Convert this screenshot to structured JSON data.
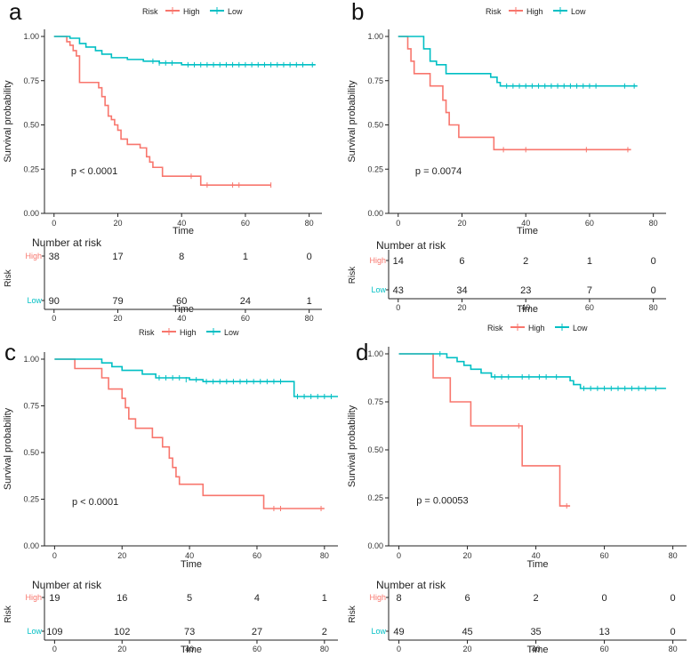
{
  "chart_data": [
    {
      "panel_label": "a",
      "type": "line",
      "subtype": "kaplan-meier",
      "legend": {
        "title": "Risk",
        "entries": [
          "High",
          "Low"
        ],
        "placement": "top"
      },
      "ylabel": "Survival probability",
      "xlabel": "Time",
      "ylim": [
        0,
        1
      ],
      "y_ticks": [
        "0.00",
        "0.25",
        "0.50",
        "0.75",
        "1.00"
      ],
      "xlim": [
        -3,
        84
      ],
      "x_ticks": [
        0,
        20,
        40,
        60,
        80
      ],
      "annotation": "p < 0.0001",
      "series": [
        {
          "name": "High",
          "color": "#f8766d",
          "steps": [
            [
              0,
              1
            ],
            [
              4,
              0.97
            ],
            [
              5,
              0.95
            ],
            [
              6,
              0.92
            ],
            [
              7,
              0.89
            ],
            [
              8,
              0.74
            ],
            [
              14,
              0.71
            ],
            [
              15,
              0.66
            ],
            [
              16,
              0.61
            ],
            [
              17,
              0.55
            ],
            [
              18,
              0.53
            ],
            [
              19,
              0.5
            ],
            [
              20,
              0.47
            ],
            [
              21,
              0.42
            ],
            [
              23,
              0.39
            ],
            [
              27,
              0.37
            ],
            [
              29,
              0.32
            ],
            [
              30,
              0.29
            ],
            [
              31,
              0.26
            ],
            [
              34,
              0.21
            ],
            [
              44,
              0.21
            ],
            [
              46,
              0.16
            ],
            [
              68,
              0.16
            ]
          ],
          "censors": [
            [
              43,
              0.21
            ],
            [
              48,
              0.16
            ],
            [
              56,
              0.16
            ],
            [
              58,
              0.16
            ],
            [
              68,
              0.16
            ]
          ]
        },
        {
          "name": "Low",
          "color": "#00bfc4",
          "steps": [
            [
              0,
              1
            ],
            [
              5,
              0.99
            ],
            [
              8,
              0.96
            ],
            [
              10,
              0.94
            ],
            [
              13,
              0.92
            ],
            [
              15,
              0.9
            ],
            [
              18,
              0.88
            ],
            [
              23,
              0.87
            ],
            [
              28,
              0.86
            ],
            [
              33,
              0.85
            ],
            [
              40,
              0.84
            ],
            [
              82,
              0.84
            ]
          ],
          "censors": [
            [
              31,
              0.86
            ],
            [
              33,
              0.85
            ],
            [
              35,
              0.85
            ],
            [
              37,
              0.85
            ],
            [
              42,
              0.84
            ],
            [
              44,
              0.84
            ],
            [
              46,
              0.84
            ],
            [
              48,
              0.84
            ],
            [
              50,
              0.84
            ],
            [
              52,
              0.84
            ],
            [
              54,
              0.84
            ],
            [
              56,
              0.84
            ],
            [
              58,
              0.84
            ],
            [
              60,
              0.84
            ],
            [
              62,
              0.84
            ],
            [
              64,
              0.84
            ],
            [
              66,
              0.84
            ],
            [
              68,
              0.84
            ],
            [
              70,
              0.84
            ],
            [
              72,
              0.84
            ],
            [
              74,
              0.84
            ],
            [
              76,
              0.84
            ],
            [
              78,
              0.84
            ],
            [
              81,
              0.84
            ]
          ]
        }
      ],
      "risk_table": {
        "title": "Number at risk",
        "ylabel": "Risk",
        "xlabel": "Time",
        "times": [
          0,
          20,
          40,
          60,
          80
        ],
        "rows": [
          {
            "label": "High",
            "values": [
              38,
              17,
              8,
              1,
              0
            ]
          },
          {
            "label": "Low",
            "values": [
              90,
              79,
              60,
              24,
              1
            ]
          }
        ]
      }
    },
    {
      "panel_label": "b",
      "type": "line",
      "subtype": "kaplan-meier",
      "legend": {
        "title": "Risk",
        "entries": [
          "High",
          "Low"
        ],
        "placement": "top"
      },
      "ylabel": "Survival probability",
      "xlabel": "Time",
      "ylim": [
        0,
        1
      ],
      "y_ticks": [
        "0.00",
        "0.25",
        "0.50",
        "0.75",
        "1.00"
      ],
      "xlim": [
        -3,
        84
      ],
      "x_ticks": [
        0,
        20,
        40,
        60,
        80
      ],
      "annotation": "p = 0.0074",
      "series": [
        {
          "name": "High",
          "color": "#f8766d",
          "steps": [
            [
              0,
              1
            ],
            [
              3,
              0.93
            ],
            [
              4,
              0.86
            ],
            [
              5,
              0.79
            ],
            [
              10,
              0.72
            ],
            [
              14,
              0.64
            ],
            [
              15,
              0.57
            ],
            [
              16,
              0.5
            ],
            [
              19,
              0.43
            ],
            [
              30,
              0.36
            ],
            [
              73,
              0.36
            ]
          ],
          "censors": [
            [
              33,
              0.36
            ],
            [
              40,
              0.36
            ],
            [
              59,
              0.36
            ],
            [
              72,
              0.36
            ]
          ]
        },
        {
          "name": "Low",
          "color": "#00bfc4",
          "steps": [
            [
              0,
              1
            ],
            [
              8,
              0.93
            ],
            [
              10,
              0.86
            ],
            [
              12,
              0.84
            ],
            [
              15,
              0.79
            ],
            [
              29,
              0.77
            ],
            [
              31,
              0.74
            ],
            [
              32,
              0.72
            ],
            [
              75,
              0.72
            ]
          ],
          "censors": [
            [
              34,
              0.72
            ],
            [
              36,
              0.72
            ],
            [
              38,
              0.72
            ],
            [
              40,
              0.72
            ],
            [
              42,
              0.72
            ],
            [
              44,
              0.72
            ],
            [
              46,
              0.72
            ],
            [
              48,
              0.72
            ],
            [
              50,
              0.72
            ],
            [
              52,
              0.72
            ],
            [
              54,
              0.72
            ],
            [
              56,
              0.72
            ],
            [
              58,
              0.72
            ],
            [
              60,
              0.72
            ],
            [
              62,
              0.72
            ],
            [
              71,
              0.72
            ],
            [
              74,
              0.72
            ]
          ]
        }
      ],
      "risk_table": {
        "title": "Number at risk",
        "ylabel": "Risk",
        "xlabel": "Time",
        "times": [
          0,
          20,
          40,
          60,
          80
        ],
        "rows": [
          {
            "label": "High",
            "values": [
              14,
              6,
              2,
              1,
              0
            ]
          },
          {
            "label": "Low",
            "values": [
              43,
              34,
              23,
              7,
              0
            ]
          }
        ]
      }
    },
    {
      "panel_label": "c",
      "type": "line",
      "subtype": "kaplan-meier",
      "legend": {
        "title": "Risk",
        "entries": [
          "High",
          "Low"
        ],
        "placement": "top"
      },
      "ylabel": "Survival probability",
      "xlabel": "Time",
      "ylim": [
        0,
        1
      ],
      "y_ticks": [
        "0.00",
        "0.25",
        "0.50",
        "0.75",
        "1.00"
      ],
      "xlim": [
        -3,
        84
      ],
      "x_ticks": [
        0,
        20,
        40,
        60,
        80
      ],
      "annotation": "p < 0.0001",
      "series": [
        {
          "name": "High",
          "color": "#f8766d",
          "steps": [
            [
              0,
              1
            ],
            [
              6,
              0.95
            ],
            [
              14,
              0.9
            ],
            [
              16,
              0.84
            ],
            [
              20,
              0.79
            ],
            [
              21,
              0.74
            ],
            [
              22,
              0.68
            ],
            [
              24,
              0.63
            ],
            [
              29,
              0.58
            ],
            [
              32,
              0.53
            ],
            [
              34,
              0.47
            ],
            [
              35,
              0.42
            ],
            [
              36,
              0.37
            ],
            [
              37,
              0.33
            ],
            [
              44,
              0.27
            ],
            [
              62,
              0.2
            ],
            [
              80,
              0.2
            ]
          ],
          "censors": [
            [
              65,
              0.2
            ],
            [
              67,
              0.2
            ],
            [
              79,
              0.2
            ]
          ]
        },
        {
          "name": "Low",
          "color": "#00bfc4",
          "steps": [
            [
              0,
              1
            ],
            [
              14,
              0.98
            ],
            [
              17,
              0.96
            ],
            [
              20,
              0.94
            ],
            [
              26,
              0.92
            ],
            [
              30,
              0.9
            ],
            [
              40,
              0.89
            ],
            [
              44,
              0.88
            ],
            [
              70,
              0.88
            ],
            [
              71,
              0.8
            ],
            [
              84,
              0.8
            ]
          ],
          "censors": [
            [
              31,
              0.9
            ],
            [
              33,
              0.9
            ],
            [
              35,
              0.9
            ],
            [
              37,
              0.9
            ],
            [
              39,
              0.89
            ],
            [
              42,
              0.89
            ],
            [
              45,
              0.88
            ],
            [
              47,
              0.88
            ],
            [
              49,
              0.88
            ],
            [
              51,
              0.88
            ],
            [
              53,
              0.88
            ],
            [
              55,
              0.88
            ],
            [
              57,
              0.88
            ],
            [
              59,
              0.88
            ],
            [
              61,
              0.88
            ],
            [
              63,
              0.88
            ],
            [
              65,
              0.88
            ],
            [
              67,
              0.88
            ],
            [
              72,
              0.8
            ],
            [
              74,
              0.8
            ],
            [
              76,
              0.8
            ],
            [
              78,
              0.8
            ],
            [
              80,
              0.8
            ],
            [
              82,
              0.8
            ]
          ]
        }
      ],
      "risk_table": {
        "title": "Number at risk",
        "ylabel": "Risk",
        "xlabel": "Time",
        "times": [
          0,
          20,
          40,
          60,
          80
        ],
        "rows": [
          {
            "label": "High",
            "values": [
              19,
              16,
              5,
              4,
              1
            ]
          },
          {
            "label": "Low",
            "values": [
              109,
              102,
              73,
              27,
              2
            ]
          }
        ]
      }
    },
    {
      "panel_label": "d",
      "type": "line",
      "subtype": "kaplan-meier",
      "legend": {
        "title": "Risk",
        "entries": [
          "High",
          "Low"
        ],
        "placement": "top"
      },
      "ylabel": "Survival probability",
      "xlabel": "Time",
      "ylim": [
        0,
        1
      ],
      "y_ticks": [
        "0.00",
        "0.25",
        "0.50",
        "0.75",
        "1.00"
      ],
      "xlim": [
        -3,
        84
      ],
      "x_ticks": [
        0,
        20,
        40,
        60,
        80
      ],
      "annotation": "p = 0.00053",
      "series": [
        {
          "name": "High",
          "color": "#f8766d",
          "steps": [
            [
              0,
              1
            ],
            [
              10,
              0.875
            ],
            [
              15,
              0.75
            ],
            [
              21,
              0.625
            ],
            [
              36,
              0.417
            ],
            [
              47,
              0.208
            ],
            [
              50,
              0.208
            ]
          ],
          "censors": [
            [
              35,
              0.625
            ],
            [
              49,
              0.208
            ]
          ]
        },
        {
          "name": "Low",
          "color": "#00bfc4",
          "steps": [
            [
              0,
              1
            ],
            [
              14,
              0.98
            ],
            [
              17,
              0.96
            ],
            [
              19,
              0.94
            ],
            [
              21,
              0.92
            ],
            [
              24,
              0.9
            ],
            [
              27,
              0.88
            ],
            [
              50,
              0.86
            ],
            [
              51,
              0.84
            ],
            [
              53,
              0.82
            ],
            [
              78,
              0.82
            ]
          ],
          "censors": [
            [
              12,
              1.0
            ],
            [
              28,
              0.88
            ],
            [
              30,
              0.88
            ],
            [
              32,
              0.88
            ],
            [
              36,
              0.88
            ],
            [
              38,
              0.88
            ],
            [
              41,
              0.88
            ],
            [
              43,
              0.88
            ],
            [
              46,
              0.88
            ],
            [
              54,
              0.82
            ],
            [
              56,
              0.82
            ],
            [
              58,
              0.82
            ],
            [
              60,
              0.82
            ],
            [
              62,
              0.82
            ],
            [
              64,
              0.82
            ],
            [
              66,
              0.82
            ],
            [
              68,
              0.82
            ],
            [
              70,
              0.82
            ],
            [
              72,
              0.82
            ],
            [
              75,
              0.82
            ]
          ]
        }
      ],
      "risk_table": {
        "title": "Number at risk",
        "ylabel": "Risk",
        "xlabel": "Time",
        "times": [
          0,
          20,
          40,
          60,
          80
        ],
        "rows": [
          {
            "label": "High",
            "values": [
              8,
              6,
              2,
              0,
              0
            ]
          },
          {
            "label": "Low",
            "values": [
              49,
              45,
              35,
              13,
              0
            ]
          }
        ]
      }
    }
  ]
}
